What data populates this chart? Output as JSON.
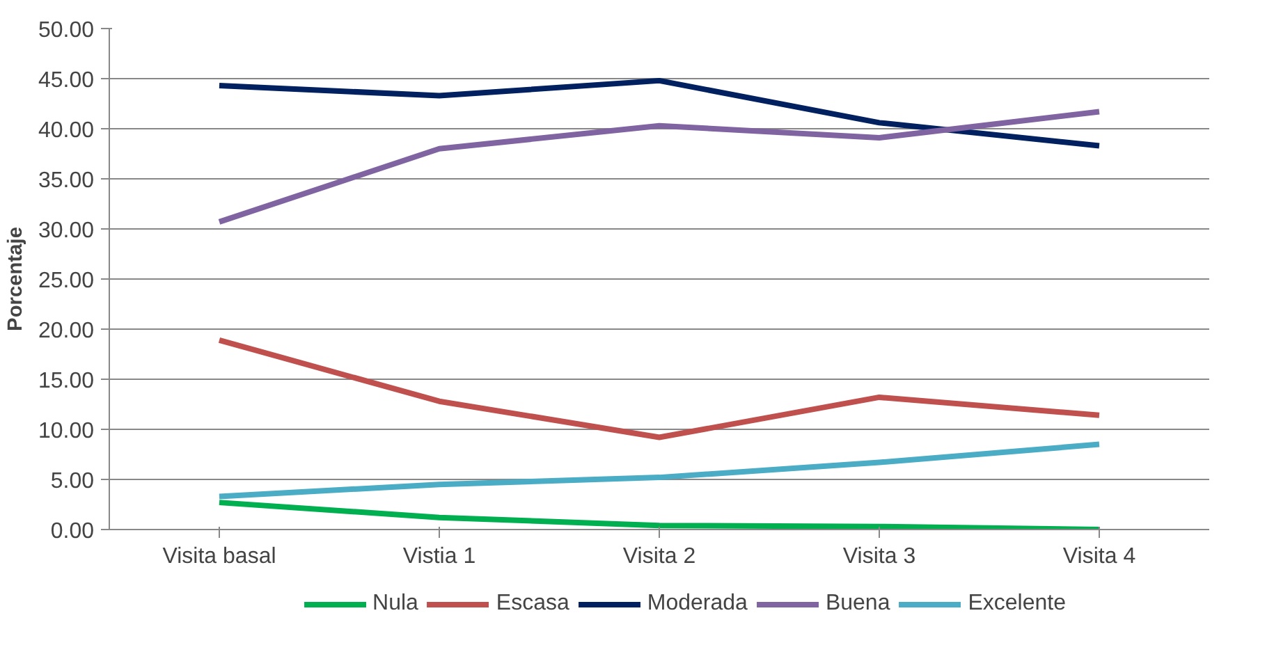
{
  "chart_data": {
    "type": "line",
    "ylabel": "Porcentaje",
    "categories": [
      "Visita basal",
      "Vistia 1",
      "Visita 2",
      "Visita 3",
      "Visita 4"
    ],
    "series": [
      {
        "name": "Nula",
        "color": "#00b050",
        "values": [
          2.7,
          1.2,
          0.4,
          0.3,
          0.0
        ]
      },
      {
        "name": "Escasa",
        "color": "#c0504d",
        "values": [
          18.9,
          12.8,
          9.2,
          13.2,
          11.4
        ]
      },
      {
        "name": "Moderada",
        "color": "#002060",
        "values": [
          44.3,
          43.3,
          44.8,
          40.6,
          38.3
        ]
      },
      {
        "name": "Buena",
        "color": "#8064a2",
        "values": [
          30.7,
          38.0,
          40.3,
          39.1,
          41.7
        ]
      },
      {
        "name": "Excelente",
        "color": "#4bacc6",
        "values": [
          3.3,
          4.5,
          5.2,
          6.7,
          8.5
        ]
      }
    ],
    "ylim": [
      0,
      50
    ],
    "yticks": [
      {
        "value": 0,
        "label": "0.00"
      },
      {
        "value": 5,
        "label": "5.00"
      },
      {
        "value": 10,
        "label": "10.00"
      },
      {
        "value": 15,
        "label": "15.00"
      },
      {
        "value": 20,
        "label": "20.00"
      },
      {
        "value": 25,
        "label": "25.00"
      },
      {
        "value": 30,
        "label": "30.00"
      },
      {
        "value": 35,
        "label": "35.00"
      },
      {
        "value": 40,
        "label": "40.00"
      },
      {
        "value": 45,
        "label": "45.00"
      },
      {
        "value": 50,
        "label": "50.00"
      }
    ],
    "grid": "y",
    "legend": "bottom",
    "marker": "none",
    "line_style": "solid"
  }
}
